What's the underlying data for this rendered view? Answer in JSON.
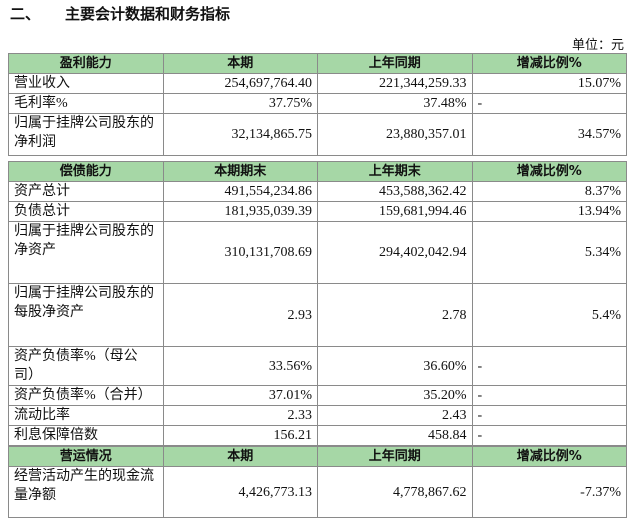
{
  "header": {
    "section_no": "二、",
    "title": "主要会计数据和财务指标",
    "unit": "单位：元"
  },
  "tables": [
    {
      "columns": [
        "盈利能力",
        "本期",
        "上年同期",
        "增减比例%"
      ],
      "rows": [
        [
          "营业收入",
          "254,697,764.40",
          "221,344,259.33",
          "15.07%"
        ],
        [
          "毛利率%",
          "37.75%",
          "37.48%",
          "-"
        ],
        [
          "归属于挂牌公司股东的净利润",
          "32,134,865.75",
          "23,880,357.01",
          "34.57%"
        ]
      ]
    },
    {
      "columns": [
        "偿债能力",
        "本期期末",
        "上年期末",
        "增减比例%"
      ],
      "rows": [
        [
          "资产总计",
          "491,554,234.86",
          "453,588,362.42",
          "8.37%"
        ],
        [
          "负债总计",
          "181,935,039.39",
          "159,681,994.46",
          "13.94%"
        ],
        [
          "归属于挂牌公司股东的净资产",
          "310,131,708.69",
          "294,402,042.94",
          "5.34%"
        ],
        [
          "归属于挂牌公司股东的每股净资产",
          "2.93",
          "2.78",
          "5.4%"
        ],
        [
          "资产负债率%（母公司）",
          "33.56%",
          "36.60%",
          "-"
        ],
        [
          "资产负债率%（合并）",
          "37.01%",
          "35.20%",
          "-"
        ],
        [
          "流动比率",
          "2.33",
          "2.43",
          "-"
        ],
        [
          "利息保障倍数",
          "156.21",
          "458.84",
          "-"
        ]
      ]
    },
    {
      "columns": [
        "营运情况",
        "本期",
        "上年同期",
        "增减比例%"
      ],
      "rows": [
        [
          "经营活动产生的现金流量净额",
          "4,426,773.13",
          "4,778,867.62",
          "-7.37%"
        ]
      ]
    }
  ]
}
